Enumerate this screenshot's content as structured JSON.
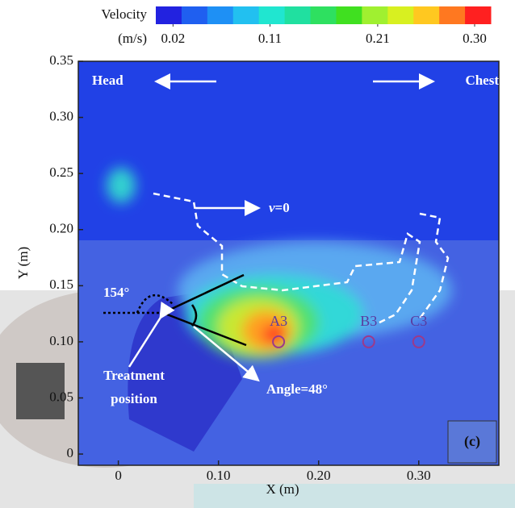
{
  "chart_data": {
    "type": "contour",
    "title": "Velocity",
    "colorbar_unit": "(m/s)",
    "colorbar_colors": [
      "#2222e0",
      "#1f5ff0",
      "#1e90f5",
      "#22c0f0",
      "#20e6d0",
      "#20e0a0",
      "#2ee060",
      "#40e020",
      "#a0f030",
      "#d8f020",
      "#ffc820",
      "#ff7820",
      "#ff2020"
    ],
    "clim": [
      0.004,
      0.315
    ],
    "cticks": [
      0.02,
      0.11,
      0.21,
      {
        "value": 0.3,
        "label": "0.30"
      }
    ],
    "xlabel": "X (m)",
    "ylabel": "Y (m)",
    "xlim": [
      -0.04,
      0.38
    ],
    "ylim": [
      -0.01,
      0.35
    ],
    "xticks": [
      0,
      {
        "value": 0.1,
        "label": "0.10"
      },
      {
        "value": 0.2,
        "label": "0.20"
      },
      {
        "value": 0.3,
        "label": "0.30"
      }
    ],
    "yticks": [
      0,
      0.05,
      {
        "value": 0.1,
        "label": "0.10"
      },
      0.15,
      {
        "value": 0.2,
        "label": "0.20"
      },
      0.25,
      {
        "value": 0.3,
        "label": "0.30"
      },
      0.35
    ],
    "points": [
      {
        "label": "A3",
        "x": 0.16,
        "y": 0.1
      },
      {
        "label": "B3",
        "x": 0.25,
        "y": 0.1
      },
      {
        "label": "C3",
        "x": 0.3,
        "y": 0.1
      }
    ],
    "annotations": {
      "head": "Head",
      "chest": "Chest",
      "v0_symbol": "v",
      "v0_rest": "=0",
      "angle_outer": "154°",
      "treatment_1": "Treatment",
      "treatment_2": "position",
      "angle": "Angle=48°",
      "panel": "(c)"
    }
  }
}
